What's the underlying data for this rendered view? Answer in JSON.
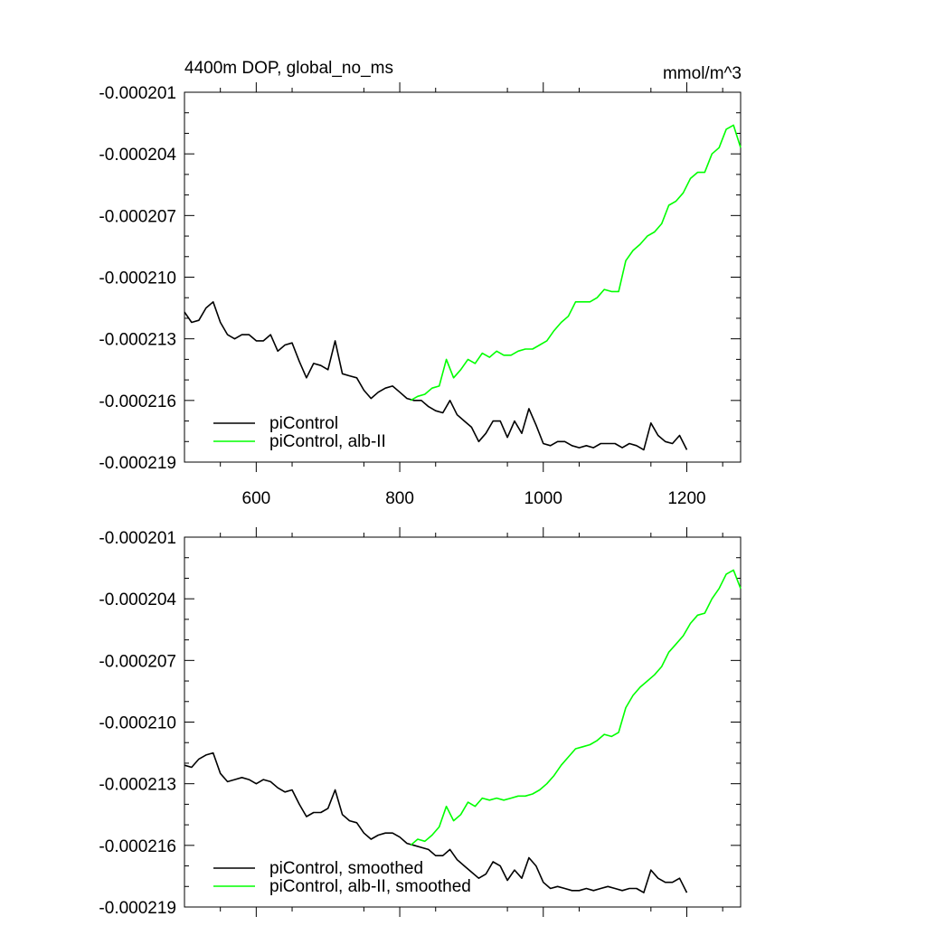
{
  "title_left": "4400m DOP, global_no_ms",
  "title_right": "mmol/m^3",
  "colors": {
    "piControl": "#000000",
    "alb_II": "#00ff00",
    "axis": "#000000"
  },
  "chart_data": [
    {
      "type": "line",
      "panel": "top",
      "xlim": [
        500,
        1275
      ],
      "ylim": [
        -0.000219,
        -0.000201
      ],
      "x_ticks": [
        600,
        800,
        1000,
        1200
      ],
      "x_tick_labels": [
        "600",
        "800",
        "1000",
        "1200"
      ],
      "y_ticks": [
        -0.000201,
        -0.000204,
        -0.000207,
        -0.00021,
        -0.000213,
        -0.000216,
        -0.000219
      ],
      "y_tick_labels": [
        "-0.000201",
        "-0.000204",
        "-0.000207",
        "-0.000210",
        "-0.000213",
        "-0.000216",
        "-0.000219"
      ],
      "legend_position": "bottom-left",
      "series": [
        {
          "name": "piControl",
          "color": "#000000",
          "x": [
            500,
            510,
            520,
            530,
            540,
            550,
            560,
            570,
            580,
            590,
            600,
            610,
            620,
            630,
            640,
            650,
            660,
            670,
            680,
            690,
            700,
            710,
            720,
            730,
            740,
            750,
            760,
            770,
            780,
            790,
            800,
            810,
            820,
            830,
            840,
            850,
            860,
            870,
            880,
            890,
            900,
            910,
            920,
            930,
            940,
            950,
            960,
            970,
            980,
            990,
            1000,
            1010,
            1020,
            1030,
            1040,
            1050,
            1060,
            1070,
            1080,
            1090,
            1100,
            1110,
            1120,
            1130,
            1140,
            1150,
            1160,
            1170,
            1180,
            1190,
            1200
          ],
          "y": [
            -0.0002117,
            -0.0002122,
            -0.0002121,
            -0.0002115,
            -0.0002112,
            -0.0002122,
            -0.0002128,
            -0.000213,
            -0.0002128,
            -0.0002128,
            -0.0002131,
            -0.0002131,
            -0.0002128,
            -0.0002136,
            -0.0002133,
            -0.0002132,
            -0.0002141,
            -0.0002149,
            -0.0002142,
            -0.0002143,
            -0.0002145,
            -0.0002131,
            -0.0002147,
            -0.0002148,
            -0.0002149,
            -0.0002155,
            -0.0002159,
            -0.0002156,
            -0.0002154,
            -0.0002153,
            -0.0002156,
            -0.0002159,
            -0.000216,
            -0.000216,
            -0.0002163,
            -0.0002165,
            -0.0002166,
            -0.000216,
            -0.0002167,
            -0.000217,
            -0.0002173,
            -0.000218,
            -0.0002176,
            -0.000217,
            -0.000217,
            -0.0002178,
            -0.000217,
            -0.0002176,
            -0.0002164,
            -0.0002172,
            -0.0002181,
            -0.0002182,
            -0.000218,
            -0.000218,
            -0.0002182,
            -0.0002183,
            -0.0002182,
            -0.0002183,
            -0.0002181,
            -0.0002181,
            -0.0002181,
            -0.0002183,
            -0.0002181,
            -0.0002182,
            -0.0002184,
            -0.0002171,
            -0.0002177,
            -0.000218,
            -0.0002181,
            -0.0002177,
            -0.0002184
          ]
        },
        {
          "name": "piControl, alb-II",
          "color": "#00ff00",
          "x": [
            815,
            825,
            835,
            845,
            855,
            865,
            875,
            885,
            895,
            905,
            915,
            925,
            935,
            945,
            955,
            965,
            975,
            985,
            995,
            1005,
            1015,
            1025,
            1035,
            1045,
            1055,
            1065,
            1075,
            1085,
            1095,
            1105,
            1115,
            1125,
            1135,
            1145,
            1155,
            1165,
            1175,
            1185,
            1195,
            1205,
            1215,
            1225,
            1235,
            1245,
            1255,
            1265,
            1275
          ],
          "y": [
            -0.000216,
            -0.0002158,
            -0.0002157,
            -0.0002154,
            -0.0002153,
            -0.000214,
            -0.0002149,
            -0.0002145,
            -0.000214,
            -0.0002142,
            -0.0002137,
            -0.0002139,
            -0.0002136,
            -0.0002138,
            -0.0002138,
            -0.0002136,
            -0.0002135,
            -0.0002135,
            -0.0002133,
            -0.0002131,
            -0.0002126,
            -0.0002122,
            -0.0002119,
            -0.0002112,
            -0.0002112,
            -0.0002112,
            -0.000211,
            -0.0002106,
            -0.0002107,
            -0.0002107,
            -0.0002092,
            -0.0002087,
            -0.0002084,
            -0.000208,
            -0.0002078,
            -0.0002074,
            -0.0002065,
            -0.0002063,
            -0.0002059,
            -0.0002052,
            -0.0002049,
            -0.0002049,
            -0.000204,
            -0.0002037,
            -0.0002028,
            -0.0002026,
            -0.0002037
          ]
        }
      ]
    },
    {
      "type": "line",
      "panel": "bottom",
      "xlim": [
        500,
        1275
      ],
      "ylim": [
        -0.000219,
        -0.000201
      ],
      "x_ticks": [
        600,
        800,
        1000,
        1200
      ],
      "y_ticks": [
        -0.000201,
        -0.000204,
        -0.000207,
        -0.00021,
        -0.000213,
        -0.000216,
        -0.000219
      ],
      "y_tick_labels": [
        "-0.000201",
        "-0.000204",
        "-0.000207",
        "-0.000210",
        "-0.000213",
        "-0.000216",
        "-0.000219"
      ],
      "legend_position": "bottom-left",
      "series": [
        {
          "name": "piControl, smoothed",
          "color": "#000000",
          "x": [
            500,
            510,
            520,
            530,
            540,
            550,
            560,
            570,
            580,
            590,
            600,
            610,
            620,
            630,
            640,
            650,
            660,
            670,
            680,
            690,
            700,
            710,
            720,
            730,
            740,
            750,
            760,
            770,
            780,
            790,
            800,
            810,
            820,
            830,
            840,
            850,
            860,
            870,
            880,
            890,
            900,
            910,
            920,
            930,
            940,
            950,
            960,
            970,
            980,
            990,
            1000,
            1010,
            1020,
            1030,
            1040,
            1050,
            1060,
            1070,
            1080,
            1090,
            1100,
            1110,
            1120,
            1130,
            1140,
            1150,
            1160,
            1170,
            1180,
            1190,
            1200
          ],
          "y": [
            -0.0002121,
            -0.0002122,
            -0.0002118,
            -0.0002116,
            -0.0002115,
            -0.0002125,
            -0.0002129,
            -0.0002128,
            -0.0002127,
            -0.0002128,
            -0.000213,
            -0.0002128,
            -0.0002129,
            -0.0002132,
            -0.0002134,
            -0.0002133,
            -0.000214,
            -0.0002146,
            -0.0002144,
            -0.0002144,
            -0.0002142,
            -0.0002133,
            -0.0002145,
            -0.0002148,
            -0.0002149,
            -0.0002154,
            -0.0002157,
            -0.0002155,
            -0.0002154,
            -0.0002154,
            -0.0002156,
            -0.0002159,
            -0.000216,
            -0.0002161,
            -0.0002162,
            -0.0002165,
            -0.0002165,
            -0.0002162,
            -0.0002167,
            -0.000217,
            -0.0002173,
            -0.0002176,
            -0.0002174,
            -0.0002168,
            -0.000217,
            -0.0002177,
            -0.0002172,
            -0.0002176,
            -0.0002166,
            -0.000217,
            -0.0002178,
            -0.0002181,
            -0.000218,
            -0.0002181,
            -0.0002182,
            -0.0002182,
            -0.0002181,
            -0.0002182,
            -0.0002181,
            -0.000218,
            -0.0002181,
            -0.0002182,
            -0.0002181,
            -0.0002181,
            -0.0002183,
            -0.0002172,
            -0.0002176,
            -0.0002178,
            -0.0002178,
            -0.0002176,
            -0.0002183
          ]
        },
        {
          "name": "piControl, alb-II, smoothed",
          "color": "#00ff00",
          "x": [
            815,
            825,
            835,
            845,
            855,
            865,
            875,
            885,
            895,
            905,
            915,
            925,
            935,
            945,
            955,
            965,
            975,
            985,
            995,
            1005,
            1015,
            1025,
            1035,
            1045,
            1055,
            1065,
            1075,
            1085,
            1095,
            1105,
            1115,
            1125,
            1135,
            1145,
            1155,
            1165,
            1175,
            1185,
            1195,
            1205,
            1215,
            1225,
            1235,
            1245,
            1255,
            1265,
            1275
          ],
          "y": [
            -0.000216,
            -0.0002157,
            -0.0002158,
            -0.0002155,
            -0.0002151,
            -0.0002141,
            -0.0002148,
            -0.0002145,
            -0.0002139,
            -0.0002141,
            -0.0002137,
            -0.0002138,
            -0.0002137,
            -0.0002138,
            -0.0002137,
            -0.0002136,
            -0.0002136,
            -0.0002135,
            -0.0002133,
            -0.000213,
            -0.0002126,
            -0.0002121,
            -0.0002117,
            -0.0002113,
            -0.0002112,
            -0.0002111,
            -0.0002109,
            -0.0002106,
            -0.0002107,
            -0.0002105,
            -0.0002093,
            -0.0002087,
            -0.0002083,
            -0.000208,
            -0.0002077,
            -0.0002073,
            -0.0002066,
            -0.0002062,
            -0.0002058,
            -0.0002052,
            -0.0002048,
            -0.0002047,
            -0.000204,
            -0.0002035,
            -0.0002028,
            -0.0002026,
            -0.0002035
          ]
        }
      ]
    }
  ]
}
